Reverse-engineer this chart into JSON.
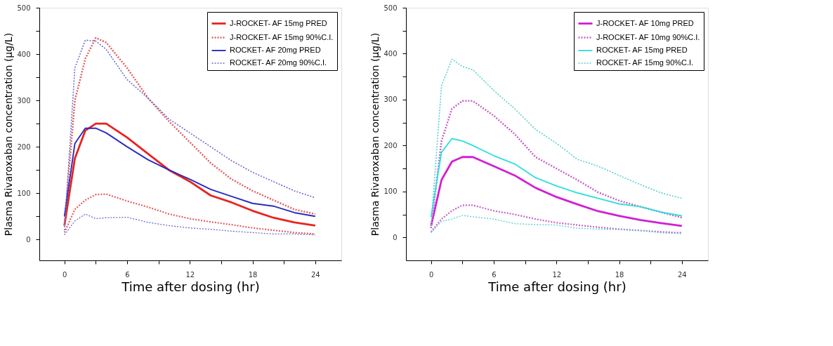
{
  "chart_data": [
    {
      "type": "line",
      "xlabel": "Time after dosing (hr)",
      "ylabel": "Plasma Rivaroxaban concentration (µg/L)",
      "xlim": [
        -2.4,
        26.5
      ],
      "ylim": [
        -45,
        500
      ],
      "xticks": [
        0,
        {
          "value": 3,
          "label": null
        },
        6,
        {
          "value": 9,
          "label": null
        },
        12,
        {
          "value": 15,
          "label": null
        },
        18,
        {
          "value": 21,
          "label": null
        },
        24
      ],
      "yticks": [
        0,
        {
          "value": 50,
          "label": null
        },
        100,
        {
          "value": 150,
          "label": null
        },
        200,
        {
          "value": 250,
          "label": null
        },
        300,
        {
          "value": 350,
          "label": null
        },
        400,
        {
          "value": 450,
          "label": null
        },
        500
      ],
      "grid": false,
      "legend": "top right",
      "marker": "none",
      "x": [
        0,
        1,
        2,
        3,
        4,
        6,
        8,
        10,
        12,
        14,
        16,
        18,
        20,
        22,
        24
      ],
      "series": [
        {
          "name": "J-ROCKET- AF 15mg PRED",
          "color": "#e8231f",
          "line_style": "solid",
          "values": [
            30,
            175,
            235,
            250,
            250,
            220,
            185,
            150,
            125,
            95,
            80,
            62,
            47,
            37,
            30
          ]
        },
        {
          "name": "J-ROCKET- AF 15mg 90%C.I.",
          "color": "#e06060",
          "line_style": "dotted",
          "values": [
            30,
            300,
            390,
            435,
            425,
            370,
            305,
            255,
            210,
            165,
            130,
            105,
            85,
            65,
            55
          ]
        },
        {
          "color": "#e06060",
          "line_style": "dotted",
          "values": [
            15,
            65,
            85,
            97,
            98,
            83,
            70,
            55,
            45,
            38,
            32,
            25,
            20,
            15,
            12
          ]
        },
        {
          "name": "ROCKET- AF 20mg PRED",
          "color": "#2b2bbf",
          "line_style": "solid",
          "values": [
            50,
            207,
            240,
            240,
            230,
            200,
            172,
            150,
            130,
            108,
            93,
            78,
            72,
            58,
            50
          ]
        },
        {
          "name": "ROCKET- AF 20mg 90%C.I.",
          "color": "#6a6ad0",
          "line_style": "dotted",
          "values": [
            20,
            370,
            430,
            428,
            410,
            345,
            305,
            260,
            230,
            200,
            170,
            145,
            125,
            105,
            90
          ]
        },
        {
          "color": "#6a6ad0",
          "line_style": "dotted",
          "values": [
            10,
            40,
            55,
            45,
            47,
            48,
            37,
            30,
            25,
            22,
            18,
            15,
            12,
            12,
            10
          ]
        }
      ]
    },
    {
      "type": "line",
      "xlabel": "Time after dosing (hr)",
      "ylabel": "Plasma Rivaroxaban concentration (µg/L)",
      "xlim": [
        -2.4,
        26.5
      ],
      "ylim": [
        -50,
        500
      ],
      "xticks": [
        0,
        {
          "value": 3,
          "label": null
        },
        6,
        {
          "value": 9,
          "label": null
        },
        12,
        {
          "value": 15,
          "label": null
        },
        18,
        {
          "value": 21,
          "label": null
        },
        24
      ],
      "yticks": [
        0,
        {
          "value": 50,
          "label": null
        },
        100,
        {
          "value": 150,
          "label": null
        },
        200,
        {
          "value": 250,
          "label": null
        },
        300,
        {
          "value": 350,
          "label": null
        },
        400,
        {
          "value": 450,
          "label": null
        },
        500
      ],
      "grid": false,
      "legend": "top right",
      "marker": "none",
      "x": [
        0,
        1,
        2,
        3,
        4,
        6,
        8,
        10,
        12,
        14,
        16,
        18,
        20,
        22,
        24
      ],
      "series": [
        {
          "name": "J-ROCKET- AF 10mg PRED",
          "color": "#d21fd2",
          "line_style": "solid",
          "values": [
            25,
            125,
            165,
            175,
            175,
            155,
            135,
            108,
            88,
            72,
            57,
            47,
            38,
            31,
            25
          ]
        },
        {
          "name": "J-ROCKET- AF 10mg 90%C.I.",
          "color": "#c860c8",
          "line_style": "dotted",
          "values": [
            20,
            210,
            280,
            297,
            297,
            265,
            225,
            175,
            150,
            125,
            98,
            80,
            67,
            55,
            43
          ]
        },
        {
          "color": "#c860c8",
          "line_style": "dotted",
          "values": [
            12,
            40,
            58,
            70,
            70,
            58,
            50,
            40,
            32,
            27,
            22,
            18,
            15,
            12,
            10
          ]
        },
        {
          "name": "ROCKET- AF 15mg PRED",
          "color": "#33dede",
          "line_style": "solid",
          "values": [
            45,
            185,
            215,
            210,
            200,
            178,
            160,
            130,
            112,
            97,
            85,
            73,
            67,
            55,
            47
          ]
        },
        {
          "name": "ROCKET- AF 15mg 90%C.I.",
          "color": "#55d0d0",
          "line_style": "dotted",
          "values": [
            25,
            330,
            388,
            372,
            365,
            320,
            280,
            235,
            205,
            170,
            155,
            135,
            115,
            97,
            85
          ]
        },
        {
          "color": "#55d0d0",
          "line_style": "dotted",
          "values": [
            10,
            35,
            40,
            48,
            45,
            40,
            30,
            28,
            27,
            20,
            18,
            17,
            15,
            10,
            8
          ]
        }
      ]
    }
  ]
}
